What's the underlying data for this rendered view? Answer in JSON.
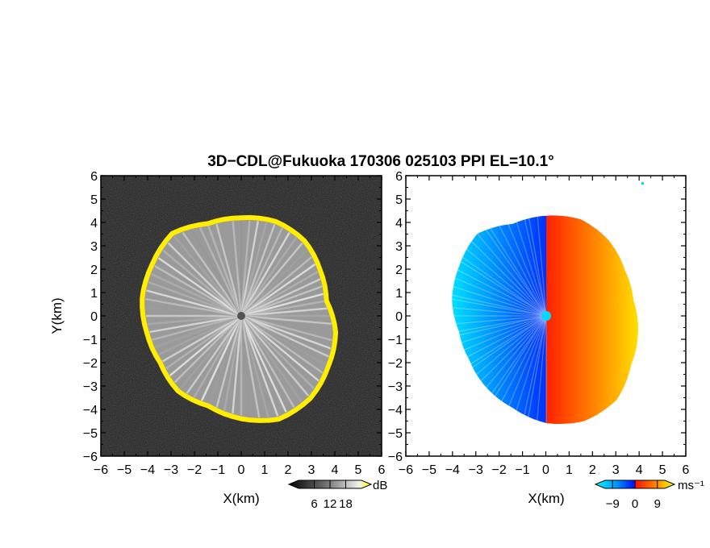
{
  "title": "3D−CDL@Fukuoka 170306 025103 PPI EL=10.1°",
  "chart_data": [
    {
      "type": "heatmap",
      "name": "reflectivity-panel",
      "xlabel": "X(km)",
      "ylabel": "Y(km)",
      "xlim": [
        -6,
        6
      ],
      "ylim": [
        -6,
        6
      ],
      "xticks": [
        "−6",
        "−5",
        "−4",
        "−3",
        "−2",
        "−1",
        "0",
        "1",
        "2",
        "3",
        "4",
        "5",
        "6"
      ],
      "yticks": [
        "6",
        "5",
        "4",
        "3",
        "2",
        "1",
        "0",
        "−1",
        "−2",
        "−3",
        "−4",
        "−5",
        "−6"
      ],
      "colorbar": {
        "unit": "dB",
        "ticks": [
          "6",
          "12",
          "18"
        ],
        "tick_values": [
          6,
          12,
          18
        ],
        "range": [
          0,
          24
        ]
      },
      "echo_radius_km": [
        4.2,
        4.3,
        4.2,
        3.9,
        3.7,
        4.1,
        4.3,
        4.6,
        4.7,
        4.4,
        4.1,
        4.2,
        4.0,
        4.1,
        4.3,
        4.4,
        4.6,
        4.2
      ],
      "edge_color": "#ffee00",
      "background_color": "#222222"
    },
    {
      "type": "heatmap",
      "name": "velocity-panel",
      "xlabel": "X(km)",
      "xlim": [
        -6,
        6
      ],
      "ylim": [
        -6,
        6
      ],
      "xticks": [
        "−6",
        "−5",
        "−4",
        "−3",
        "−2",
        "−1",
        "0",
        "1",
        "2",
        "3",
        "4",
        "5",
        "6"
      ],
      "yticks": [
        "6",
        "5",
        "4",
        "3",
        "2",
        "1",
        "0",
        "−1",
        "−2",
        "−3",
        "−4",
        "−5",
        "−6"
      ],
      "colorbar": {
        "unit": "ms⁻¹",
        "ticks": [
          "−9",
          "0",
          "9"
        ],
        "tick_values": [
          -9,
          0,
          9
        ],
        "range": [
          -12,
          12
        ]
      },
      "echo_radius_km": [
        4.3,
        4.4,
        4.2,
        3.9,
        3.8,
        4.0,
        4.2,
        4.7,
        4.8,
        4.6,
        4.2,
        4.0,
        3.8,
        3.8,
        4.1,
        4.3,
        4.6,
        4.2
      ],
      "colors": {
        "approaching_far": "#00e0ff",
        "approaching_near": "#0030ff",
        "receding_near": "#ff2000",
        "receding_far": "#ffe000"
      }
    }
  ]
}
